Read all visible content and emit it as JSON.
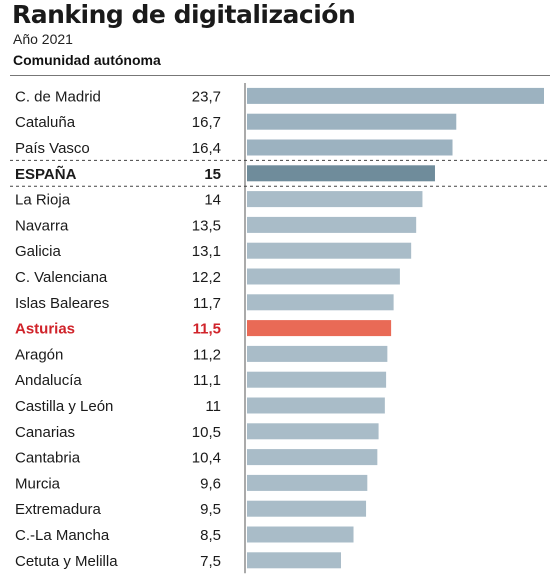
{
  "header": {
    "title": "Ranking de digitalización",
    "subtitle": "Año 2021",
    "column_label": "Comunidad autónoma"
  },
  "colors": {
    "default_bar": "#a9bcc8",
    "top_bar": "#9cb2c0",
    "spain_bar": "#6f8c9b",
    "asturias_bar": "#e96a56",
    "asturias_text": "#d0232a"
  },
  "chart_data": {
    "type": "bar",
    "orientation": "horizontal",
    "title": "Ranking de digitalización",
    "subtitle": "Año 2021",
    "xlabel": "",
    "ylabel": "Comunidad autónoma",
    "xlim": [
      0,
      23.7
    ],
    "grid": false,
    "categories": [
      "C. de Madrid",
      "Cataluña",
      "País Vasco",
      "ESPAÑA",
      "La Rioja",
      "Navarra",
      "Galicia",
      "C. Valenciana",
      "Islas Baleares",
      "Asturias",
      "Aragón",
      "Andalucía",
      "Castilla y León",
      "Canarias",
      "Cantabria",
      "Murcia",
      "Extremadura",
      "C.-La Mancha",
      "Cetuta y Melilla"
    ],
    "values": [
      23.7,
      16.7,
      16.4,
      15,
      14,
      13.5,
      13.1,
      12.2,
      11.7,
      11.5,
      11.2,
      11.1,
      11,
      10.5,
      10.4,
      9.6,
      9.5,
      8.5,
      7.5
    ],
    "value_labels": [
      "23,7",
      "16,7",
      "16,4",
      "15",
      "14",
      "13,5",
      "13,1",
      "12,2",
      "11,7",
      "11,5",
      "11,2",
      "11,1",
      "11",
      "10,5",
      "10,4",
      "9,6",
      "9,5",
      "8,5",
      "7,5"
    ],
    "highlight": {
      "ESPAÑA": "spain",
      "Asturias": "asturias"
    }
  }
}
